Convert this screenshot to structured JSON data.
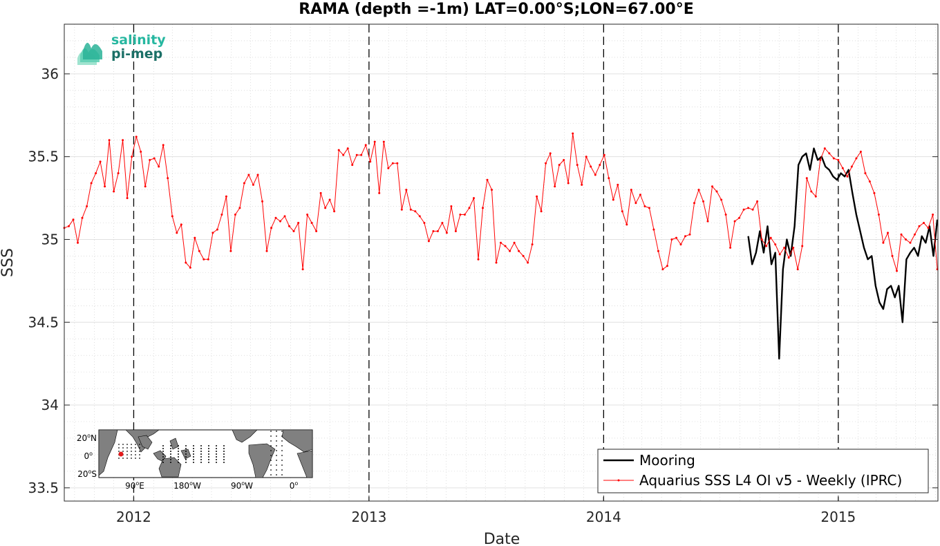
{
  "chart_data": {
    "type": "line",
    "title": "RAMA (depth =-1m) LAT=0.00°S;LON=67.00°E",
    "xlabel": "Date",
    "ylabel": "SSS",
    "xlim": [
      "2011-09-15",
      "2015-06-05"
    ],
    "ylim": [
      33.42,
      36.3
    ],
    "x_ticks": [
      {
        "date": "2012-01-01",
        "label": "2012"
      },
      {
        "date": "2013-01-01",
        "label": "2013"
      },
      {
        "date": "2014-01-01",
        "label": "2014"
      },
      {
        "date": "2015-01-01",
        "label": "2015"
      }
    ],
    "y_ticks": [
      {
        "value": 33.5,
        "label": "33.5"
      },
      {
        "value": 34,
        "label": "34"
      },
      {
        "value": 34.5,
        "label": "34.5"
      },
      {
        "value": 35,
        "label": "35"
      },
      {
        "value": 35.5,
        "label": "35.5"
      },
      {
        "value": 36,
        "label": "36"
      }
    ],
    "grid": true,
    "year_markers": [
      "2012-01-01",
      "2013-01-01",
      "2014-01-01",
      "2015-01-01"
    ],
    "legend_position": "bottom-right",
    "series": [
      {
        "name": "Mooring",
        "color": "#000000",
        "x": [
          "2014-08-14",
          "2014-08-20",
          "2014-08-26",
          "2014-09-01",
          "2014-09-07",
          "2014-09-13",
          "2014-09-19",
          "2014-09-25",
          "2014-10-01",
          "2014-10-07",
          "2014-10-13",
          "2014-10-19",
          "2014-10-25",
          "2014-10-31",
          "2014-11-06",
          "2014-11-12",
          "2014-11-18",
          "2014-11-24",
          "2014-11-30",
          "2014-12-06",
          "2014-12-12",
          "2014-12-18",
          "2014-12-24",
          "2014-12-30",
          "2015-01-05",
          "2015-01-11",
          "2015-01-17",
          "2015-01-23",
          "2015-01-29",
          "2015-02-04",
          "2015-02-10",
          "2015-02-16",
          "2015-02-22",
          "2015-02-28",
          "2015-03-06",
          "2015-03-12",
          "2015-03-18",
          "2015-03-24",
          "2015-03-30",
          "2015-04-05",
          "2015-04-11",
          "2015-04-17",
          "2015-04-23",
          "2015-04-29",
          "2015-05-05",
          "2015-05-11",
          "2015-05-17",
          "2015-05-23",
          "2015-05-29",
          "2015-06-04"
        ],
        "y": [
          35.02,
          34.85,
          34.92,
          35.05,
          34.92,
          35.08,
          34.85,
          34.92,
          34.28,
          34.82,
          35.0,
          34.9,
          35.08,
          35.45,
          35.5,
          35.52,
          35.42,
          35.55,
          35.48,
          35.5,
          35.44,
          35.42,
          35.38,
          35.36,
          35.4,
          35.38,
          35.42,
          35.28,
          35.15,
          35.05,
          34.95,
          34.88,
          34.9,
          34.72,
          34.62,
          34.58,
          34.7,
          34.72,
          34.65,
          34.72,
          34.5,
          34.88,
          34.92,
          34.95,
          34.9,
          35.02,
          34.98,
          35.08,
          34.9,
          35.12
        ]
      },
      {
        "name": "Aquarius SSS L4 OI v5 - Weekly (IPRC)",
        "color": "#ff0000",
        "x": [
          "2011-09-15",
          "2011-09-22",
          "2011-09-29",
          "2011-10-06",
          "2011-10-13",
          "2011-10-20",
          "2011-10-27",
          "2011-11-03",
          "2011-11-10",
          "2011-11-17",
          "2011-11-24",
          "2011-12-01",
          "2011-12-08",
          "2011-12-15",
          "2011-12-22",
          "2011-12-29",
          "2012-01-05",
          "2012-01-12",
          "2012-01-19",
          "2012-01-26",
          "2012-02-02",
          "2012-02-09",
          "2012-02-16",
          "2012-02-23",
          "2012-03-01",
          "2012-03-08",
          "2012-03-15",
          "2012-03-22",
          "2012-03-29",
          "2012-04-05",
          "2012-04-12",
          "2012-04-19",
          "2012-04-26",
          "2012-05-03",
          "2012-05-10",
          "2012-05-17",
          "2012-05-24",
          "2012-05-31",
          "2012-06-07",
          "2012-06-14",
          "2012-06-21",
          "2012-06-28",
          "2012-07-05",
          "2012-07-12",
          "2012-07-19",
          "2012-07-26",
          "2012-08-02",
          "2012-08-09",
          "2012-08-16",
          "2012-08-23",
          "2012-08-30",
          "2012-09-06",
          "2012-09-13",
          "2012-09-20",
          "2012-09-27",
          "2012-10-04",
          "2012-10-11",
          "2012-10-18",
          "2012-10-25",
          "2012-11-01",
          "2012-11-08",
          "2012-11-15",
          "2012-11-22",
          "2012-11-29",
          "2012-12-06",
          "2012-12-13",
          "2012-12-20",
          "2012-12-27",
          "2013-01-03",
          "2013-01-10",
          "2013-01-17",
          "2013-01-24",
          "2013-01-31",
          "2013-02-07",
          "2013-02-14",
          "2013-02-21",
          "2013-02-28",
          "2013-03-07",
          "2013-03-14",
          "2013-03-21",
          "2013-03-28",
          "2013-04-04",
          "2013-04-11",
          "2013-04-18",
          "2013-04-25",
          "2013-05-02",
          "2013-05-09",
          "2013-05-16",
          "2013-05-23",
          "2013-05-30",
          "2013-06-06",
          "2013-06-13",
          "2013-06-20",
          "2013-06-27",
          "2013-07-04",
          "2013-07-11",
          "2013-07-18",
          "2013-07-25",
          "2013-08-01",
          "2013-08-08",
          "2013-08-15",
          "2013-08-22",
          "2013-08-29",
          "2013-09-05",
          "2013-09-12",
          "2013-09-19",
          "2013-09-26",
          "2013-10-03",
          "2013-10-10",
          "2013-10-17",
          "2013-10-24",
          "2013-10-31",
          "2013-11-07",
          "2013-11-14",
          "2013-11-21",
          "2013-11-28",
          "2013-12-05",
          "2013-12-12",
          "2013-12-19",
          "2013-12-26",
          "2014-01-02",
          "2014-01-09",
          "2014-01-16",
          "2014-01-23",
          "2014-01-30",
          "2014-02-06",
          "2014-02-13",
          "2014-02-20",
          "2014-02-27",
          "2014-03-06",
          "2014-03-13",
          "2014-03-20",
          "2014-03-27",
          "2014-04-03",
          "2014-04-10",
          "2014-04-17",
          "2014-04-24",
          "2014-05-01",
          "2014-05-08",
          "2014-05-15",
          "2014-05-22",
          "2014-05-29",
          "2014-06-05",
          "2014-06-12",
          "2014-06-19",
          "2014-06-26",
          "2014-07-03",
          "2014-07-10",
          "2014-07-17",
          "2014-07-24",
          "2014-07-31",
          "2014-08-07",
          "2014-08-14",
          "2014-08-21",
          "2014-08-28",
          "2014-09-04",
          "2014-09-11",
          "2014-09-18",
          "2014-09-25",
          "2014-10-02",
          "2014-10-09",
          "2014-10-16",
          "2014-10-23",
          "2014-10-30",
          "2014-11-06",
          "2014-11-13",
          "2014-11-20",
          "2014-11-27",
          "2014-12-04",
          "2014-12-11",
          "2014-12-18",
          "2014-12-25",
          "2015-01-01",
          "2015-01-08",
          "2015-01-15",
          "2015-01-22",
          "2015-01-29",
          "2015-02-05",
          "2015-02-12",
          "2015-02-19",
          "2015-02-26",
          "2015-03-05",
          "2015-03-12",
          "2015-03-19",
          "2015-03-26",
          "2015-04-02",
          "2015-04-09",
          "2015-04-16",
          "2015-04-23",
          "2015-04-30",
          "2015-05-07",
          "2015-05-14",
          "2015-05-21",
          "2015-05-28",
          "2015-06-04"
        ],
        "y": [
          35.07,
          35.08,
          35.12,
          34.98,
          35.13,
          35.2,
          35.34,
          35.4,
          35.47,
          35.32,
          35.6,
          35.29,
          35.4,
          35.6,
          35.25,
          35.5,
          35.62,
          35.53,
          35.32,
          35.48,
          35.49,
          35.44,
          35.57,
          35.37,
          35.14,
          35.04,
          35.09,
          34.86,
          34.83,
          35.01,
          34.93,
          34.88,
          34.88,
          35.04,
          35.06,
          35.15,
          35.26,
          34.93,
          35.15,
          35.19,
          35.34,
          35.39,
          35.33,
          35.39,
          35.23,
          34.93,
          35.07,
          35.13,
          35.11,
          35.14,
          35.08,
          35.05,
          35.1,
          34.82,
          35.15,
          35.1,
          35.05,
          35.28,
          35.19,
          35.24,
          35.17,
          35.54,
          35.51,
          35.55,
          35.45,
          35.51,
          35.51,
          35.57,
          35.47,
          35.59,
          35.28,
          35.59,
          35.43,
          35.46,
          35.46,
          35.18,
          35.3,
          35.18,
          35.17,
          35.14,
          35.1,
          34.99,
          35.05,
          35.05,
          35.1,
          35.04,
          35.2,
          35.05,
          35.15,
          35.15,
          35.19,
          35.25,
          34.88,
          35.19,
          35.36,
          35.3,
          34.86,
          34.98,
          34.96,
          34.93,
          34.98,
          34.93,
          34.9,
          34.86,
          34.97,
          35.26,
          35.17,
          35.46,
          35.52,
          35.32,
          35.45,
          35.48,
          35.34,
          35.64,
          35.45,
          35.33,
          35.5,
          35.44,
          35.39,
          35.45,
          35.51,
          35.37,
          35.24,
          35.33,
          35.17,
          35.09,
          35.3,
          35.22,
          35.27,
          35.2,
          35.19,
          35.06,
          34.93,
          34.82,
          34.84,
          35.0,
          35.01,
          34.97,
          35.02,
          35.03,
          35.22,
          35.3,
          35.23,
          35.11,
          35.32,
          35.29,
          35.24,
          35.15,
          34.95,
          35.11,
          35.13,
          35.18,
          35.19,
          35.18,
          35.23,
          35.0,
          34.96,
          35.01,
          34.97,
          34.91,
          34.95,
          34.89,
          34.95,
          34.82,
          34.96,
          35.37,
          35.29,
          35.26,
          35.48,
          35.55,
          35.52,
          35.49,
          35.48,
          35.43,
          35.38,
          35.44,
          35.49,
          35.53,
          35.4,
          35.35,
          35.28,
          35.15,
          34.98,
          35.04,
          34.9,
          34.81,
          35.03,
          35.0,
          34.98,
          35.03,
          35.08,
          35.1,
          35.07,
          35.15,
          34.82
        ]
      }
    ]
  },
  "logo": {
    "line1": "salinity",
    "line2": "pi-mep"
  },
  "inset_map": {
    "y_labels": [
      {
        "base": "20",
        "sup": "o",
        "suffix": "N"
      },
      {
        "base": "0",
        "sup": "o",
        "suffix": ""
      },
      {
        "base": "20",
        "sup": "o",
        "suffix": "S"
      }
    ],
    "x_labels": [
      {
        "base": "90",
        "sup": "o",
        "suffix": "E"
      },
      {
        "base": "180",
        "sup": "o",
        "suffix": "W"
      },
      {
        "base": "90",
        "sup": "o",
        "suffix": "W"
      },
      {
        "base": "0",
        "sup": "o",
        "suffix": ""
      }
    ],
    "land_color": "#808080",
    "location_marker_color": "#e31a1c"
  }
}
